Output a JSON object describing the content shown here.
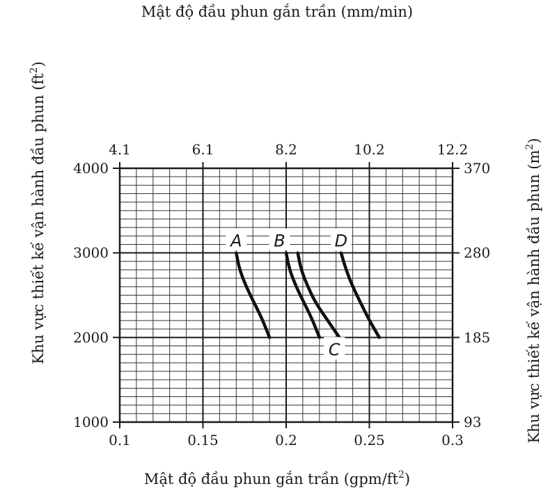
{
  "chart_data": {
    "type": "line",
    "title": "",
    "x_bottom": {
      "label": "Mật độ đầu phun gắn trần (gpm/ft",
      "label_sup": "2",
      "label_close": ")",
      "range": [
        0.1,
        0.3
      ],
      "ticks": [
        "0.1",
        "0.15",
        "0.2",
        "0.25",
        "0.3"
      ],
      "minor_step": 0.01
    },
    "x_top": {
      "label": "Mật độ đầu phun gắn trần (mm/min)",
      "ticks": [
        "4.1",
        "6.1",
        "8.2",
        "10.2",
        "12.2"
      ]
    },
    "y_left": {
      "label": "Khu vực thiết kế vận hành đầu phun (ft",
      "label_sup": "2",
      "label_close": ")",
      "range": [
        1000,
        4000
      ],
      "ticks": [
        "1000",
        "2000",
        "3000",
        "4000"
      ],
      "minor_step": 100
    },
    "y_right": {
      "label": "Khu vực thiết kế vận hành đầu phun (m",
      "label_sup": "2",
      "label_close": ")",
      "ticks": [
        "93",
        "185",
        "280",
        "370"
      ]
    },
    "grid": true,
    "series": [
      {
        "name": "A",
        "label_at": [
          0.17,
          3150
        ],
        "x": [
          0.17,
          0.172,
          0.176,
          0.181,
          0.186,
          0.19
        ],
        "y": [
          3000,
          2800,
          2600,
          2400,
          2200,
          2000
        ]
      },
      {
        "name": "B",
        "label_at": [
          0.196,
          3150
        ],
        "x": [
          0.2,
          0.202,
          0.206,
          0.211,
          0.216,
          0.22
        ],
        "y": [
          3000,
          2800,
          2600,
          2400,
          2200,
          2000
        ]
      },
      {
        "name": "C",
        "label_at": [
          0.229,
          1865
        ],
        "x": [
          0.207,
          0.209,
          0.213,
          0.218,
          0.225,
          0.232
        ],
        "y": [
          3000,
          2800,
          2600,
          2400,
          2200,
          2000
        ]
      },
      {
        "name": "D",
        "label_at": [
          0.233,
          3150
        ],
        "x": [
          0.233,
          0.236,
          0.24,
          0.245,
          0.25,
          0.256
        ],
        "y": [
          3000,
          2800,
          2600,
          2400,
          2200,
          2000
        ]
      }
    ]
  }
}
